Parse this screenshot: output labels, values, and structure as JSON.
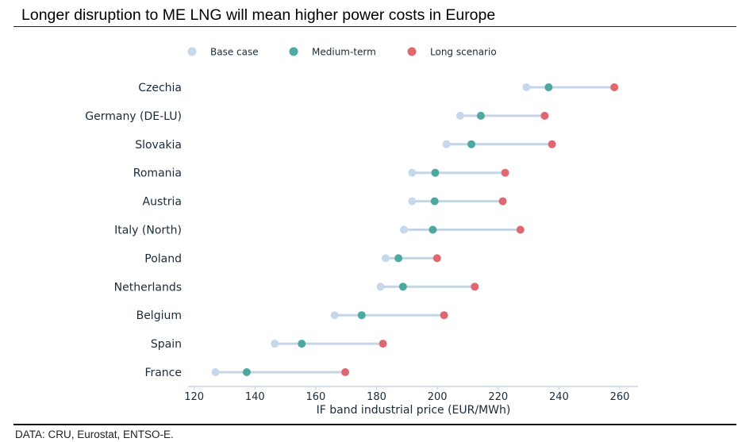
{
  "title": "Longer disruption to ME LNG will mean higher power costs in Europe",
  "source": "DATA: CRU, Eurostat, ENTSO-E.",
  "chart_data": {
    "type": "scatter",
    "xlabel": "IF band industrial price (EUR/MWh)",
    "xlim": [
      118,
      266
    ],
    "xticks": [
      120,
      140,
      160,
      180,
      200,
      220,
      240,
      260
    ],
    "legend_position": "top",
    "categories": [
      "Czechia",
      "Germany (DE-LU)",
      "Slovakia",
      "Romania",
      "Austria",
      "Italy (North)",
      "Poland",
      "Netherlands",
      "Belgium",
      "Spain",
      "France"
    ],
    "series": [
      {
        "name": "Base case",
        "color": "#c6d8ec",
        "values": [
          229.3,
          207.5,
          203,
          191.7,
          191.7,
          189,
          183,
          181.3,
          166.2,
          146.5,
          127
        ]
      },
      {
        "name": "Medium-term",
        "color": "#4da89f",
        "values": [
          236.6,
          214.3,
          211.2,
          199.3,
          199.1,
          198.5,
          187.2,
          188.7,
          175.1,
          155.4,
          137.3
        ]
      },
      {
        "name": "Long scenario",
        "color": "#e06670",
        "values": [
          258.2,
          235.3,
          237.7,
          222.3,
          221.5,
          227.3,
          199.9,
          212.3,
          202.2,
          182.1,
          169.7
        ]
      }
    ],
    "connector_color": "#c6d5e5",
    "axis_color": "#c6d5e5"
  }
}
